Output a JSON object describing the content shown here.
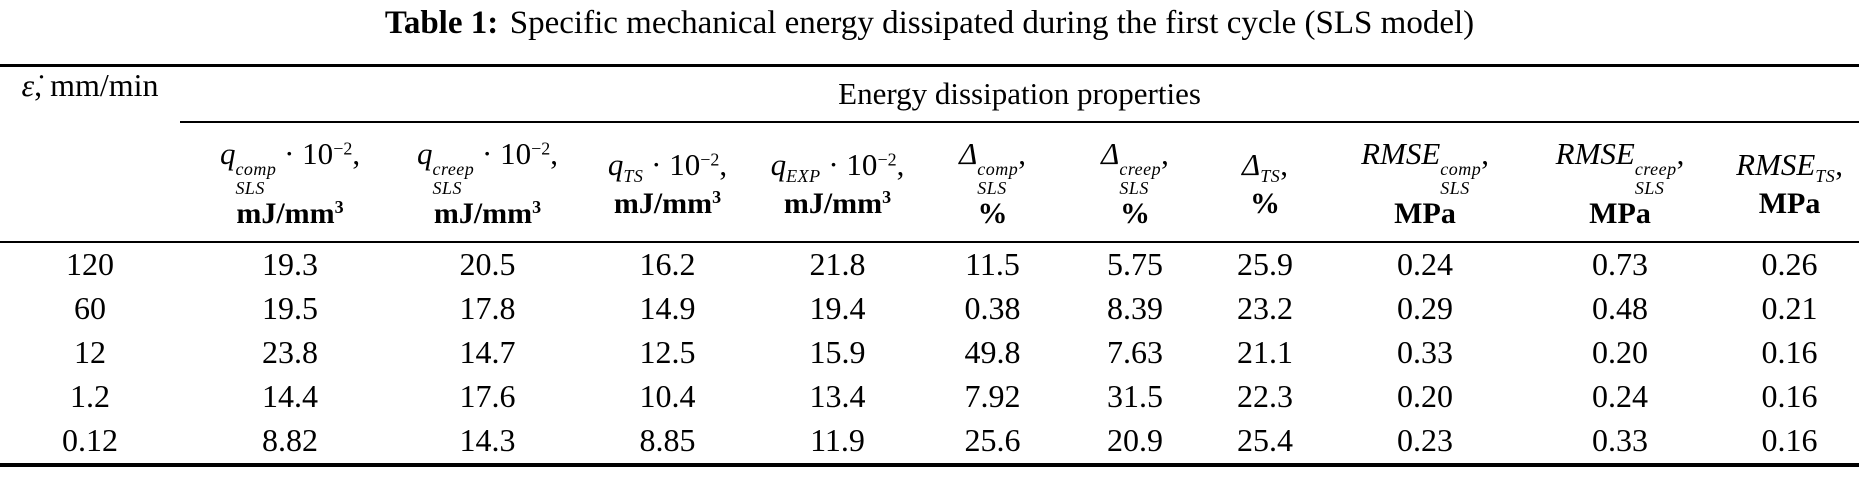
{
  "title": {
    "label": "Table 1:",
    "text": "Specific mechanical energy dissipated during the first cycle (SLS model)"
  },
  "table": {
    "rate_header": {
      "symbol": "ε̇",
      "rest": ", mm/min"
    },
    "group_header": "Energy dissipation properties",
    "columns": [
      {
        "id": "q-sls-comp",
        "sym": "q",
        "sup": "comp",
        "sub": "SLS",
        "factor": " · 10",
        "exp": "−2",
        "comma": ",",
        "unit": "mJ/mm",
        "unit_sup": "3"
      },
      {
        "id": "q-sls-creep",
        "sym": "q",
        "sup": "creep",
        "sub": "SLS",
        "factor": " · 10",
        "exp": "−2",
        "comma": ",",
        "unit": "mJ/mm",
        "unit_sup": "3"
      },
      {
        "id": "q-ts",
        "sym": "q",
        "sup": "",
        "sub": "TS",
        "factor": " · 10",
        "exp": "−2",
        "comma": ",",
        "unit": "mJ/mm",
        "unit_sup": "3"
      },
      {
        "id": "q-exp",
        "sym": "q",
        "sup": "",
        "sub": "EXP",
        "factor": " · 10",
        "exp": "−2",
        "comma": ",",
        "unit": "mJ/mm",
        "unit_sup": "3"
      },
      {
        "id": "delta-sls-comp",
        "sym": "Δ",
        "sup": "comp",
        "sub": "SLS",
        "factor": "",
        "exp": "",
        "comma": ",",
        "unit": "%",
        "unit_sup": ""
      },
      {
        "id": "delta-sls-creep",
        "sym": "Δ",
        "sup": "creep",
        "sub": "SLS",
        "factor": "",
        "exp": "",
        "comma": ",",
        "unit": "%",
        "unit_sup": ""
      },
      {
        "id": "delta-ts",
        "sym": "Δ",
        "sup": "",
        "sub": "TS",
        "factor": "",
        "exp": "",
        "comma": ",",
        "unit": "%",
        "unit_sup": ""
      },
      {
        "id": "rmse-sls-comp",
        "sym": "RMSE",
        "sup": "comp",
        "sub": "SLS",
        "factor": "",
        "exp": "",
        "comma": ",",
        "unit": "MPa",
        "unit_sup": ""
      },
      {
        "id": "rmse-sls-creep",
        "sym": "RMSE",
        "sup": "creep",
        "sub": "SLS",
        "factor": "",
        "exp": "",
        "comma": ",",
        "unit": "MPa",
        "unit_sup": ""
      },
      {
        "id": "rmse-ts",
        "sym": "RMSE",
        "sup": "",
        "sub": "TS",
        "factor": "",
        "exp": "",
        "comma": ",",
        "unit": "MPa",
        "unit_sup": ""
      }
    ],
    "rows": [
      {
        "rate": "120",
        "values": [
          "19.3",
          "20.5",
          "16.2",
          "21.8",
          "11.5",
          "5.75",
          "25.9",
          "0.24",
          "0.73",
          "0.26"
        ]
      },
      {
        "rate": "60",
        "values": [
          "19.5",
          "17.8",
          "14.9",
          "19.4",
          "0.38",
          "8.39",
          "23.2",
          "0.29",
          "0.48",
          "0.21"
        ]
      },
      {
        "rate": "12",
        "values": [
          "23.8",
          "14.7",
          "12.5",
          "15.9",
          "49.8",
          "7.63",
          "21.1",
          "0.33",
          "0.20",
          "0.16"
        ]
      },
      {
        "rate": "1.2",
        "values": [
          "14.4",
          "17.6",
          "10.4",
          "13.4",
          "7.92",
          "31.5",
          "22.3",
          "0.20",
          "0.24",
          "0.16"
        ]
      },
      {
        "rate": "0.12",
        "values": [
          "8.82",
          "14.3",
          "8.85",
          "11.9",
          "25.6",
          "20.9",
          "25.4",
          "0.23",
          "0.33",
          "0.16"
        ]
      }
    ]
  }
}
